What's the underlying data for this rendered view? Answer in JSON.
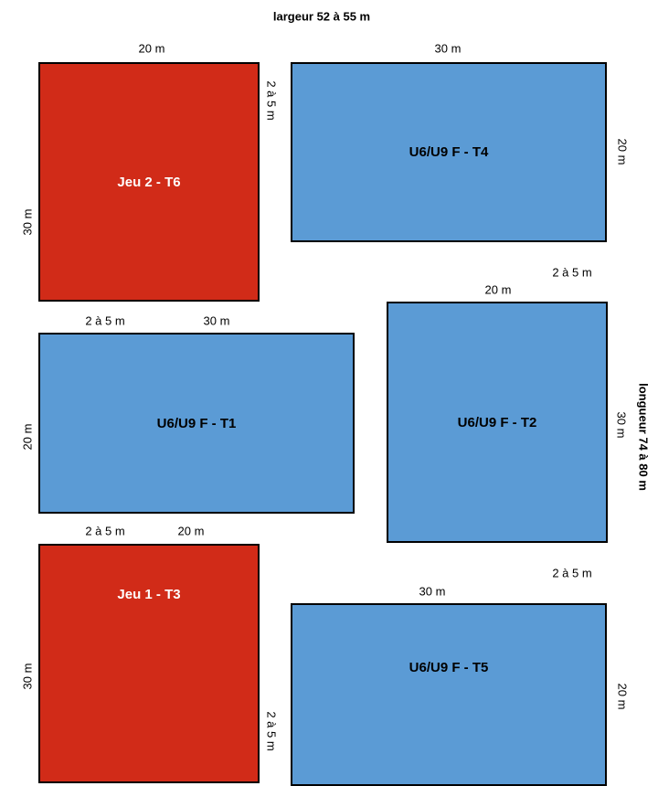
{
  "overall": {
    "width_label": "largeur 52 à 55 m",
    "length_label": "longueur 74 à 80 m"
  },
  "colors": {
    "red_field": "#d12b18",
    "blue_field": "#5b9bd5"
  },
  "fields": [
    {
      "id": "t6",
      "label": "Jeu 2 - T6",
      "color": "#d12b18",
      "width_label": "20 m",
      "height_label": "30 m"
    },
    {
      "id": "t4",
      "label": "U6/U9 F - T4",
      "color": "#5b9bd5",
      "width_label": "30 m",
      "height_label": "20 m"
    },
    {
      "id": "t1",
      "label": "U6/U9 F - T1",
      "color": "#5b9bd5",
      "width_label": "30 m",
      "height_label": "20 m"
    },
    {
      "id": "t2",
      "label": "U6/U9 F - T2",
      "color": "#5b9bd5",
      "width_label": "20 m",
      "height_label": "30 m"
    },
    {
      "id": "t3",
      "label": "Jeu 1 - T3",
      "color": "#d12b18",
      "width_label": "20  m",
      "height_label": "30 m"
    },
    {
      "id": "t5",
      "label": "U6/U9 F - T5",
      "color": "#5b9bd5",
      "width_label": "30 m",
      "height_label": "20 m"
    }
  ],
  "gaps": {
    "t6_t4": "2 à 5 m",
    "t4_t2": "2 à 5 m",
    "t6_t1": "2 à 5 m",
    "t1_t3": "2 à 5 m",
    "t2_t5": "2 à 5 m",
    "t3_t5": "2 à 5 m"
  }
}
